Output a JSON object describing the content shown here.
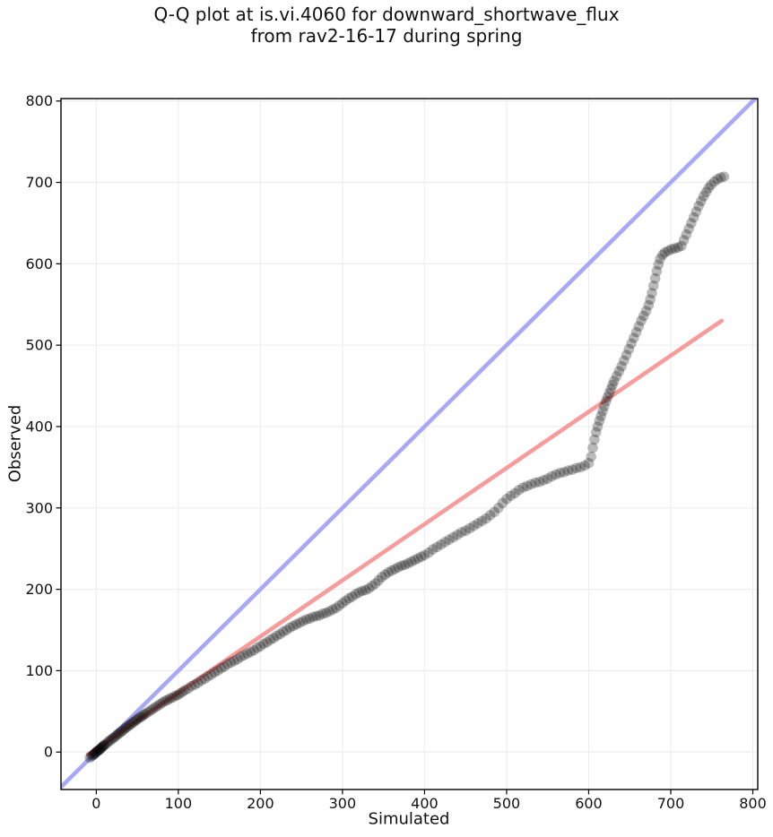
{
  "chart_data": {
    "type": "scatter",
    "title_line1": "Q-Q plot at is.vi.4060 for downward_shortwave_flux",
    "title_line2": "from rav2-16-17 during spring",
    "xlabel": "Simulated",
    "ylabel": "Observed",
    "xlim": [
      -43,
      806
    ],
    "ylim": [
      -46,
      803
    ],
    "xticks": [
      0,
      100,
      200,
      300,
      400,
      500,
      600,
      700,
      800
    ],
    "yticks": [
      0,
      100,
      200,
      300,
      400,
      500,
      600,
      700,
      800
    ],
    "grid": true,
    "grid_color": "#ededed",
    "spine_color": "#000000",
    "identity_line": {
      "color": "#a8a8f5",
      "width": 4.6,
      "points": [
        [
          -46,
          -46
        ],
        [
          806,
          806
        ]
      ]
    },
    "fit_line": {
      "color": "#f79b9b",
      "width": 4.6,
      "slope": 0.69,
      "intercept": 4,
      "points": [
        [
          -10,
          -3
        ],
        [
          762,
          530
        ]
      ]
    },
    "marker": {
      "color": "#000000",
      "opacity": 0.27,
      "radius_px": 5.8
    },
    "points": [
      [
        -8,
        -7
      ],
      [
        -6,
        -5
      ],
      [
        -4,
        -4
      ],
      [
        -3,
        -3
      ],
      [
        -2,
        -2
      ],
      [
        -1,
        -1
      ],
      [
        0,
        0
      ],
      [
        1,
        1
      ],
      [
        2,
        2
      ],
      [
        3,
        2
      ],
      [
        4,
        3
      ],
      [
        5,
        4
      ],
      [
        6,
        5
      ],
      [
        7,
        6
      ],
      [
        8,
        7
      ],
      [
        9,
        8
      ],
      [
        10,
        9
      ],
      [
        12,
        10
      ],
      [
        14,
        12
      ],
      [
        16,
        14
      ],
      [
        18,
        15
      ],
      [
        20,
        17
      ],
      [
        22,
        18
      ],
      [
        24,
        20
      ],
      [
        26,
        22
      ],
      [
        28,
        23
      ],
      [
        30,
        25
      ],
      [
        32,
        26
      ],
      [
        34,
        28
      ],
      [
        36,
        30
      ],
      [
        38,
        31
      ],
      [
        40,
        33
      ],
      [
        42,
        34
      ],
      [
        44,
        36
      ],
      [
        46,
        37
      ],
      [
        48,
        39
      ],
      [
        50,
        40
      ],
      [
        52,
        42
      ],
      [
        54,
        43
      ],
      [
        56,
        44
      ],
      [
        58,
        46
      ],
      [
        60,
        47
      ],
      [
        63,
        49
      ],
      [
        66,
        51
      ],
      [
        69,
        53
      ],
      [
        72,
        55
      ],
      [
        75,
        57
      ],
      [
        78,
        59
      ],
      [
        81,
        61
      ],
      [
        84,
        63
      ],
      [
        87,
        64
      ],
      [
        90,
        66
      ],
      [
        93,
        67
      ],
      [
        96,
        69
      ],
      [
        99,
        70
      ],
      [
        102,
        72
      ],
      [
        105,
        74
      ],
      [
        108,
        76
      ],
      [
        112,
        78
      ],
      [
        116,
        81
      ],
      [
        120,
        83
      ],
      [
        124,
        85
      ],
      [
        128,
        88
      ],
      [
        132,
        90
      ],
      [
        136,
        93
      ],
      [
        140,
        95
      ],
      [
        144,
        98
      ],
      [
        148,
        100
      ],
      [
        152,
        103
      ],
      [
        156,
        105
      ],
      [
        160,
        108
      ],
      [
        164,
        110
      ],
      [
        168,
        112
      ],
      [
        172,
        114
      ],
      [
        176,
        117
      ],
      [
        180,
        119
      ],
      [
        184,
        121
      ],
      [
        188,
        123
      ],
      [
        192,
        125
      ],
      [
        196,
        128
      ],
      [
        200,
        130
      ],
      [
        204,
        133
      ],
      [
        208,
        135
      ],
      [
        212,
        138
      ],
      [
        216,
        140
      ],
      [
        220,
        143
      ],
      [
        224,
        145
      ],
      [
        228,
        148
      ],
      [
        232,
        150
      ],
      [
        236,
        153
      ],
      [
        240,
        155
      ],
      [
        244,
        157
      ],
      [
        248,
        159
      ],
      [
        252,
        161
      ],
      [
        256,
        163
      ],
      [
        260,
        164
      ],
      [
        264,
        166
      ],
      [
        268,
        167
      ],
      [
        272,
        168
      ],
      [
        276,
        170
      ],
      [
        280,
        171
      ],
      [
        284,
        173
      ],
      [
        288,
        175
      ],
      [
        292,
        177
      ],
      [
        296,
        180
      ],
      [
        300,
        183
      ],
      [
        304,
        186
      ],
      [
        308,
        189
      ],
      [
        312,
        191
      ],
      [
        316,
        194
      ],
      [
        320,
        196
      ],
      [
        324,
        198
      ],
      [
        328,
        199
      ],
      [
        332,
        201
      ],
      [
        336,
        204
      ],
      [
        340,
        207
      ],
      [
        344,
        211
      ],
      [
        348,
        215
      ],
      [
        352,
        218
      ],
      [
        356,
        221
      ],
      [
        360,
        223
      ],
      [
        364,
        225
      ],
      [
        368,
        227
      ],
      [
        372,
        229
      ],
      [
        376,
        230
      ],
      [
        380,
        232
      ],
      [
        384,
        234
      ],
      [
        388,
        236
      ],
      [
        392,
        238
      ],
      [
        396,
        240
      ],
      [
        400,
        242
      ],
      [
        405,
        245
      ],
      [
        410,
        249
      ],
      [
        415,
        252
      ],
      [
        420,
        255
      ],
      [
        425,
        258
      ],
      [
        430,
        261
      ],
      [
        435,
        264
      ],
      [
        440,
        267
      ],
      [
        445,
        270
      ],
      [
        450,
        272
      ],
      [
        455,
        275
      ],
      [
        460,
        278
      ],
      [
        465,
        281
      ],
      [
        470,
        284
      ],
      [
        475,
        287
      ],
      [
        480,
        291
      ],
      [
        485,
        295
      ],
      [
        490,
        300
      ],
      [
        495,
        306
      ],
      [
        500,
        311
      ],
      [
        505,
        315
      ],
      [
        510,
        318
      ],
      [
        515,
        322
      ],
      [
        520,
        325
      ],
      [
        525,
        327
      ],
      [
        530,
        329
      ],
      [
        535,
        331
      ],
      [
        540,
        332
      ],
      [
        545,
        334
      ],
      [
        550,
        336
      ],
      [
        555,
        339
      ],
      [
        560,
        341
      ],
      [
        565,
        343
      ],
      [
        570,
        344
      ],
      [
        575,
        346
      ],
      [
        580,
        347
      ],
      [
        585,
        349
      ],
      [
        590,
        350
      ],
      [
        595,
        352
      ],
      [
        600,
        355
      ],
      [
        603,
        363
      ],
      [
        605,
        374
      ],
      [
        607,
        384
      ],
      [
        609,
        393
      ],
      [
        611,
        400
      ],
      [
        613,
        407
      ],
      [
        615,
        413
      ],
      [
        617,
        419
      ],
      [
        619,
        425
      ],
      [
        621,
        431
      ],
      [
        623,
        436
      ],
      [
        625,
        441
      ],
      [
        627,
        446
      ],
      [
        629,
        451
      ],
      [
        631,
        456
      ],
      [
        634,
        462
      ],
      [
        637,
        468
      ],
      [
        640,
        474
      ],
      [
        643,
        481
      ],
      [
        646,
        488
      ],
      [
        649,
        495
      ],
      [
        652,
        502
      ],
      [
        655,
        509
      ],
      [
        658,
        516
      ],
      [
        661,
        523
      ],
      [
        664,
        530
      ],
      [
        667,
        536
      ],
      [
        670,
        542
      ],
      [
        673,
        549
      ],
      [
        675,
        556
      ],
      [
        677,
        564
      ],
      [
        679,
        573
      ],
      [
        681,
        582
      ],
      [
        683,
        591
      ],
      [
        685,
        599
      ],
      [
        687,
        606
      ],
      [
        690,
        611
      ],
      [
        693,
        614
      ],
      [
        697,
        616
      ],
      [
        701,
        618
      ],
      [
        705,
        619
      ],
      [
        709,
        620
      ],
      [
        713,
        622
      ],
      [
        716,
        629
      ],
      [
        719,
        636
      ],
      [
        722,
        643
      ],
      [
        725,
        650
      ],
      [
        728,
        657
      ],
      [
        731,
        664
      ],
      [
        734,
        671
      ],
      [
        737,
        677
      ],
      [
        740,
        683
      ],
      [
        743,
        688
      ],
      [
        746,
        693
      ],
      [
        749,
        697
      ],
      [
        753,
        701
      ],
      [
        757,
        704
      ],
      [
        761,
        706
      ],
      [
        765,
        707
      ]
    ]
  }
}
